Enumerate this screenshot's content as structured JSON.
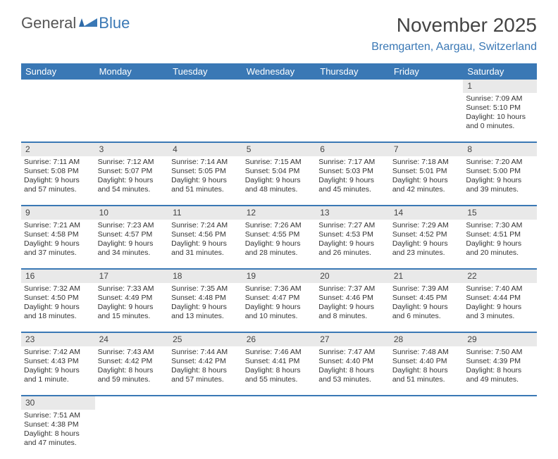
{
  "logo": {
    "text1": "General",
    "text2": "Blue"
  },
  "title": "November 2025",
  "location": "Bremgarten, Aargau, Switzerland",
  "colors": {
    "header_bg": "#3a78b5",
    "header_text": "#ffffff",
    "daynum_bg": "#e9e9e9",
    "border": "#3a78b5",
    "body_text": "#333333",
    "title_text": "#444444",
    "location_text": "#3a78b5",
    "background": "#ffffff"
  },
  "typography": {
    "title_fontsize": 28,
    "location_fontsize": 16,
    "header_fontsize": 13,
    "daynum_fontsize": 12,
    "cell_fontsize": 10.5
  },
  "weekdays": [
    "Sunday",
    "Monday",
    "Tuesday",
    "Wednesday",
    "Thursday",
    "Friday",
    "Saturday"
  ],
  "weeks": [
    {
      "nums": [
        "",
        "",
        "",
        "",
        "",
        "",
        "1"
      ],
      "cells": [
        null,
        null,
        null,
        null,
        null,
        null,
        {
          "sunrise": "Sunrise: 7:09 AM",
          "sunset": "Sunset: 5:10 PM",
          "day1": "Daylight: 10 hours",
          "day2": "and 0 minutes."
        }
      ]
    },
    {
      "nums": [
        "2",
        "3",
        "4",
        "5",
        "6",
        "7",
        "8"
      ],
      "cells": [
        {
          "sunrise": "Sunrise: 7:11 AM",
          "sunset": "Sunset: 5:08 PM",
          "day1": "Daylight: 9 hours",
          "day2": "and 57 minutes."
        },
        {
          "sunrise": "Sunrise: 7:12 AM",
          "sunset": "Sunset: 5:07 PM",
          "day1": "Daylight: 9 hours",
          "day2": "and 54 minutes."
        },
        {
          "sunrise": "Sunrise: 7:14 AM",
          "sunset": "Sunset: 5:05 PM",
          "day1": "Daylight: 9 hours",
          "day2": "and 51 minutes."
        },
        {
          "sunrise": "Sunrise: 7:15 AM",
          "sunset": "Sunset: 5:04 PM",
          "day1": "Daylight: 9 hours",
          "day2": "and 48 minutes."
        },
        {
          "sunrise": "Sunrise: 7:17 AM",
          "sunset": "Sunset: 5:03 PM",
          "day1": "Daylight: 9 hours",
          "day2": "and 45 minutes."
        },
        {
          "sunrise": "Sunrise: 7:18 AM",
          "sunset": "Sunset: 5:01 PM",
          "day1": "Daylight: 9 hours",
          "day2": "and 42 minutes."
        },
        {
          "sunrise": "Sunrise: 7:20 AM",
          "sunset": "Sunset: 5:00 PM",
          "day1": "Daylight: 9 hours",
          "day2": "and 39 minutes."
        }
      ]
    },
    {
      "nums": [
        "9",
        "10",
        "11",
        "12",
        "13",
        "14",
        "15"
      ],
      "cells": [
        {
          "sunrise": "Sunrise: 7:21 AM",
          "sunset": "Sunset: 4:58 PM",
          "day1": "Daylight: 9 hours",
          "day2": "and 37 minutes."
        },
        {
          "sunrise": "Sunrise: 7:23 AM",
          "sunset": "Sunset: 4:57 PM",
          "day1": "Daylight: 9 hours",
          "day2": "and 34 minutes."
        },
        {
          "sunrise": "Sunrise: 7:24 AM",
          "sunset": "Sunset: 4:56 PM",
          "day1": "Daylight: 9 hours",
          "day2": "and 31 minutes."
        },
        {
          "sunrise": "Sunrise: 7:26 AM",
          "sunset": "Sunset: 4:55 PM",
          "day1": "Daylight: 9 hours",
          "day2": "and 28 minutes."
        },
        {
          "sunrise": "Sunrise: 7:27 AM",
          "sunset": "Sunset: 4:53 PM",
          "day1": "Daylight: 9 hours",
          "day2": "and 26 minutes."
        },
        {
          "sunrise": "Sunrise: 7:29 AM",
          "sunset": "Sunset: 4:52 PM",
          "day1": "Daylight: 9 hours",
          "day2": "and 23 minutes."
        },
        {
          "sunrise": "Sunrise: 7:30 AM",
          "sunset": "Sunset: 4:51 PM",
          "day1": "Daylight: 9 hours",
          "day2": "and 20 minutes."
        }
      ]
    },
    {
      "nums": [
        "16",
        "17",
        "18",
        "19",
        "20",
        "21",
        "22"
      ],
      "cells": [
        {
          "sunrise": "Sunrise: 7:32 AM",
          "sunset": "Sunset: 4:50 PM",
          "day1": "Daylight: 9 hours",
          "day2": "and 18 minutes."
        },
        {
          "sunrise": "Sunrise: 7:33 AM",
          "sunset": "Sunset: 4:49 PM",
          "day1": "Daylight: 9 hours",
          "day2": "and 15 minutes."
        },
        {
          "sunrise": "Sunrise: 7:35 AM",
          "sunset": "Sunset: 4:48 PM",
          "day1": "Daylight: 9 hours",
          "day2": "and 13 minutes."
        },
        {
          "sunrise": "Sunrise: 7:36 AM",
          "sunset": "Sunset: 4:47 PM",
          "day1": "Daylight: 9 hours",
          "day2": "and 10 minutes."
        },
        {
          "sunrise": "Sunrise: 7:37 AM",
          "sunset": "Sunset: 4:46 PM",
          "day1": "Daylight: 9 hours",
          "day2": "and 8 minutes."
        },
        {
          "sunrise": "Sunrise: 7:39 AM",
          "sunset": "Sunset: 4:45 PM",
          "day1": "Daylight: 9 hours",
          "day2": "and 6 minutes."
        },
        {
          "sunrise": "Sunrise: 7:40 AM",
          "sunset": "Sunset: 4:44 PM",
          "day1": "Daylight: 9 hours",
          "day2": "and 3 minutes."
        }
      ]
    },
    {
      "nums": [
        "23",
        "24",
        "25",
        "26",
        "27",
        "28",
        "29"
      ],
      "cells": [
        {
          "sunrise": "Sunrise: 7:42 AM",
          "sunset": "Sunset: 4:43 PM",
          "day1": "Daylight: 9 hours",
          "day2": "and 1 minute."
        },
        {
          "sunrise": "Sunrise: 7:43 AM",
          "sunset": "Sunset: 4:42 PM",
          "day1": "Daylight: 8 hours",
          "day2": "and 59 minutes."
        },
        {
          "sunrise": "Sunrise: 7:44 AM",
          "sunset": "Sunset: 4:42 PM",
          "day1": "Daylight: 8 hours",
          "day2": "and 57 minutes."
        },
        {
          "sunrise": "Sunrise: 7:46 AM",
          "sunset": "Sunset: 4:41 PM",
          "day1": "Daylight: 8 hours",
          "day2": "and 55 minutes."
        },
        {
          "sunrise": "Sunrise: 7:47 AM",
          "sunset": "Sunset: 4:40 PM",
          "day1": "Daylight: 8 hours",
          "day2": "and 53 minutes."
        },
        {
          "sunrise": "Sunrise: 7:48 AM",
          "sunset": "Sunset: 4:40 PM",
          "day1": "Daylight: 8 hours",
          "day2": "and 51 minutes."
        },
        {
          "sunrise": "Sunrise: 7:50 AM",
          "sunset": "Sunset: 4:39 PM",
          "day1": "Daylight: 8 hours",
          "day2": "and 49 minutes."
        }
      ]
    },
    {
      "nums": [
        "30",
        "",
        "",
        "",
        "",
        "",
        ""
      ],
      "cells": [
        {
          "sunrise": "Sunrise: 7:51 AM",
          "sunset": "Sunset: 4:38 PM",
          "day1": "Daylight: 8 hours",
          "day2": "and 47 minutes."
        },
        null,
        null,
        null,
        null,
        null,
        null
      ]
    }
  ]
}
